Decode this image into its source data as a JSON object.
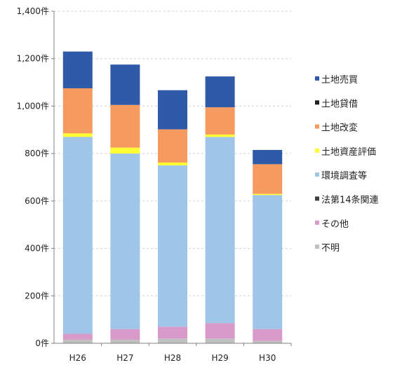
{
  "chart_data": {
    "type": "bar",
    "stacked": true,
    "title": "",
    "xlabel": "",
    "ylabel": "",
    "ylim": [
      0,
      1400
    ],
    "y_tick_values": [
      0,
      200,
      400,
      600,
      800,
      1000,
      1200,
      1400
    ],
    "y_tick_labels": [
      "0件",
      "200件",
      "400件",
      "600件",
      "800件",
      "1,000件",
      "1,200件",
      "1,400件"
    ],
    "grid": true,
    "legend_position": "right",
    "categories": [
      "H26",
      "H27",
      "H28",
      "H29",
      "H30"
    ],
    "series": [
      {
        "name": "不明",
        "color": "#c0c0c0",
        "values": [
          15,
          15,
          20,
          20,
          10
        ]
      },
      {
        "name": "その他",
        "color": "#d89ac8",
        "values": [
          25,
          45,
          50,
          65,
          50
        ]
      },
      {
        "name": "法第14条関連",
        "color": "#404040",
        "values": [
          0,
          0,
          0,
          0,
          0
        ]
      },
      {
        "name": "環境調査等",
        "color": "#9fc5e8",
        "values": [
          830,
          740,
          680,
          785,
          565
        ]
      },
      {
        "name": "土地資産評価",
        "color": "#ffff33",
        "values": [
          15,
          25,
          12,
          10,
          5
        ]
      },
      {
        "name": "土地改変",
        "color": "#f79a60",
        "values": [
          190,
          180,
          140,
          115,
          125
        ]
      },
      {
        "name": "土地貸借",
        "color": "#1f1f1f",
        "values": [
          0,
          0,
          0,
          0,
          0
        ]
      },
      {
        "name": "土地売買",
        "color": "#2e5aa8",
        "values": [
          155,
          170,
          165,
          130,
          60
        ]
      }
    ],
    "legend_order": [
      "土地売買",
      "土地貸借",
      "土地改変",
      "土地資産評価",
      "環境調査等",
      "法第14条関連",
      "その他",
      "不明"
    ]
  }
}
